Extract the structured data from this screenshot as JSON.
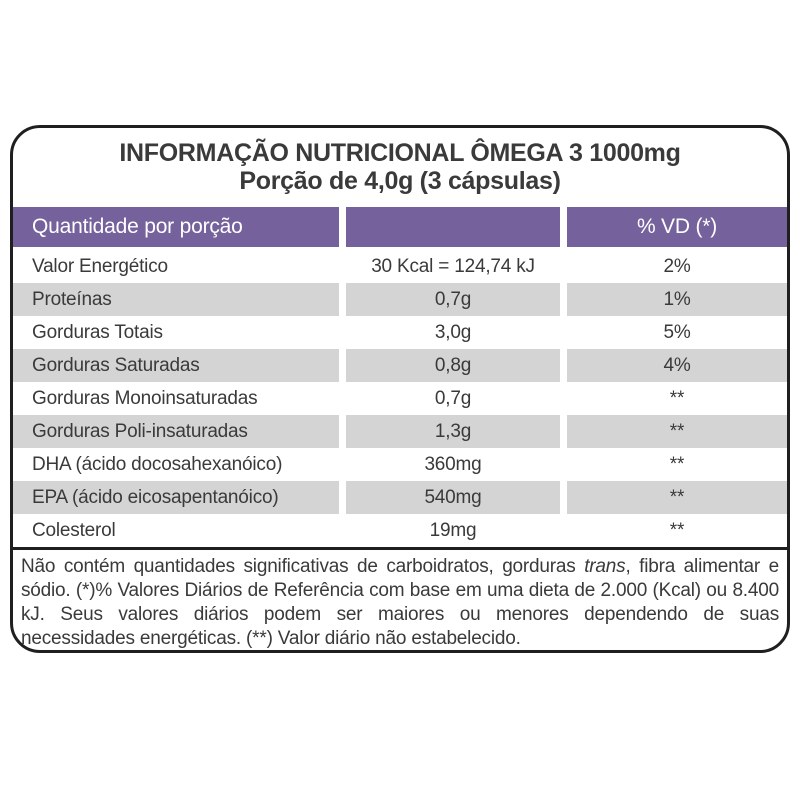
{
  "colors": {
    "header_purple": "#75619b",
    "row_gray": "#d4d4d4",
    "text_dark": "#3a3a3a",
    "border_black": "#1f1f1f",
    "header_text": "#ffffff"
  },
  "label": {
    "title": "INFORMAÇÃO NUTRICIONAL ÔMEGA 3 1000mg",
    "subtitle": "Porção de 4,0g (3 cápsulas)",
    "table": {
      "header": {
        "quantity_col": "Quantidade por porção",
        "amount_col": "",
        "dv_col": "% VD (*)"
      },
      "rows": [
        {
          "name": "Valor Energético",
          "amount": "30 Kcal = 124,74 kJ",
          "dv": "2%"
        },
        {
          "name": "Proteínas",
          "amount": "0,7g",
          "dv": "1%"
        },
        {
          "name": "Gorduras Totais",
          "amount": "3,0g",
          "dv": "5%"
        },
        {
          "name": "Gorduras Saturadas",
          "amount": "0,8g",
          "dv": "4%"
        },
        {
          "name": "Gorduras Monoinsaturadas",
          "amount": "0,7g",
          "dv": "**"
        },
        {
          "name": "Gorduras Poli-insaturadas",
          "amount": "1,3g",
          "dv": "**"
        },
        {
          "name": "DHA (ácido docosahexanóico)",
          "amount": "360mg",
          "dv": "**"
        },
        {
          "name": "EPA (ácido eicosapentanóico)",
          "amount": "540mg",
          "dv": "**"
        },
        {
          "name": "Colesterol",
          "amount": "19mg",
          "dv": "**"
        }
      ]
    },
    "footnote": {
      "text_before_italic": "Não contém quantidades significativas de carboidratos, gorduras ",
      "italic_word": "trans",
      "text_after_italic": ", fibra alimentar e sódio. (*)% Valores Diários de Referência com base em uma dieta de 2.000 (Kcal) ou 8.400 kJ. Seus valores diários podem ser maiores ou menores dependendo de suas necessidades energéticas. (**) Valor diário não estabelecido."
    }
  }
}
